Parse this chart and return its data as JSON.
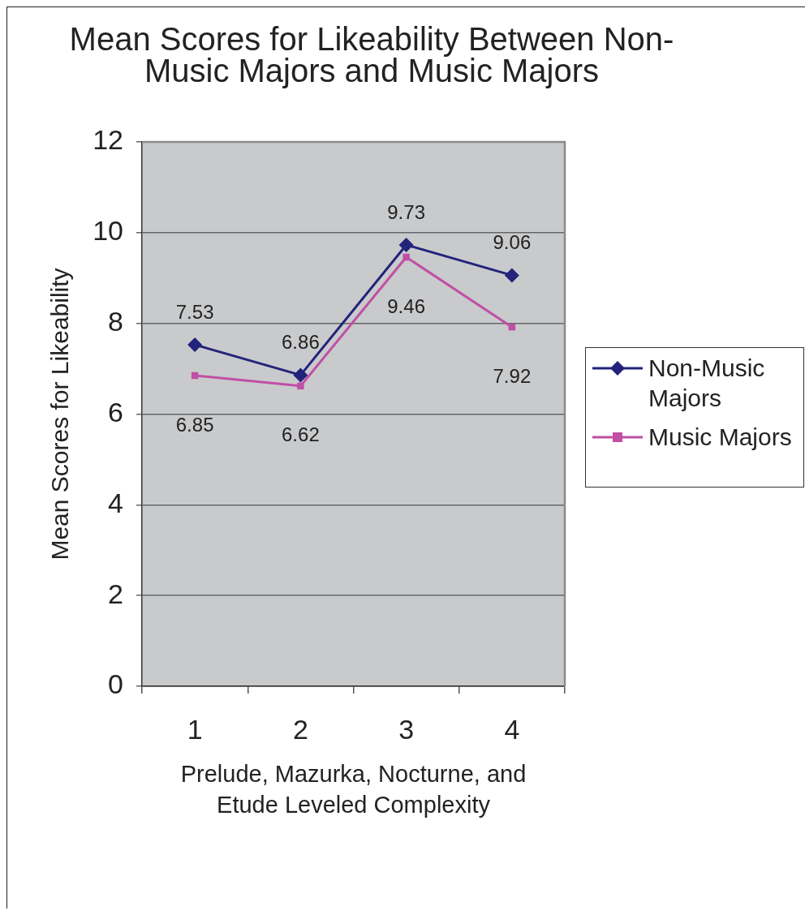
{
  "chart_data": {
    "type": "line",
    "title": "Mean Scores for Likeability Between Non-Music Majors and Music Majors",
    "xlabel": "Prelude, Mazurka, Nocturne, and Etude Leveled Complexity",
    "ylabel": "Mean Scores for Likeability",
    "categories": [
      "1",
      "2",
      "3",
      "4"
    ],
    "series": [
      {
        "name": "Non-Music Majors",
        "color": "#23237b",
        "marker": "diamond",
        "values": [
          7.53,
          6.86,
          9.73,
          9.06
        ]
      },
      {
        "name": "Music Majors",
        "color": "#c04fa5",
        "marker": "square",
        "values": [
          6.85,
          6.62,
          9.46,
          7.92
        ]
      }
    ],
    "ylim": [
      0,
      12
    ],
    "yticks": [
      0,
      2,
      4,
      6,
      8,
      10,
      12
    ],
    "grid": "y",
    "legend": "right",
    "data_labels": true
  }
}
